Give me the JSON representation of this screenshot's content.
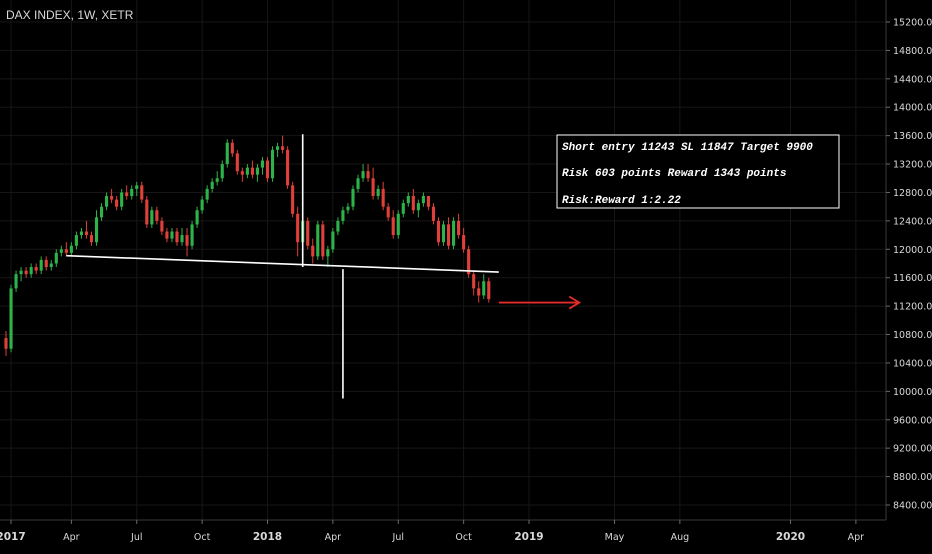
{
  "colors": {
    "background": "#000000",
    "grid": "#161616",
    "text": "#d9d9d9",
    "up_candle": "#2db34a",
    "down_candle": "#e0403a",
    "neckline": "#ffffff",
    "target_arrow": "#e22b2b",
    "annotation_border": "#ffffff"
  },
  "header": {
    "symbol_title": "DAX INDEX, 1W, XETR"
  },
  "annotation": {
    "line1": "Short entry 11243 SL 11847 Target 9900",
    "line2": "Risk 603 points Reward 1343 points",
    "line3": "Risk:Reward 1:2.22"
  },
  "chart_data": {
    "type": "candlestick",
    "title": "DAX INDEX, 1W, XETR",
    "interval": "1W",
    "exchange": "XETR",
    "yaxis": {
      "range": [
        8200,
        15400
      ],
      "ticks": [
        8400,
        8800,
        9200,
        9600,
        10000,
        10400,
        10800,
        11200,
        11600,
        12000,
        12400,
        12800,
        13200,
        13600,
        14000,
        14400,
        14800,
        15200
      ],
      "tick_labels": [
        "8400.00",
        "8800.00",
        "9200.00",
        "9600.00",
        "10000.00",
        "10400.00",
        "10800.00",
        "11200.00",
        "11600.00",
        "12000.00",
        "12400.00",
        "12800.00",
        "13200.00",
        "13600.00",
        "14000.00",
        "14400.00",
        "14800.00",
        "15200.00"
      ]
    },
    "xaxis": {
      "start_week": 0,
      "end_week": 160,
      "ticks": [
        {
          "week": 1,
          "label": "2017"
        },
        {
          "week": 13,
          "label": "Apr"
        },
        {
          "week": 26,
          "label": "Jul"
        },
        {
          "week": 39,
          "label": "Oct"
        },
        {
          "week": 52,
          "label": "2018"
        },
        {
          "week": 65,
          "label": "Apr"
        },
        {
          "week": 78,
          "label": "Jul"
        },
        {
          "week": 91,
          "label": "Oct"
        },
        {
          "week": 104,
          "label": "2019"
        },
        {
          "week": 121,
          "label": "May"
        },
        {
          "week": 134,
          "label": "Aug"
        },
        {
          "week": 156,
          "label": "2020"
        },
        {
          "week": 169,
          "label": "Apr"
        }
      ]
    },
    "grid": true,
    "candles": [
      [
        10750,
        10850,
        10500,
        10600
      ],
      [
        10600,
        11500,
        10550,
        11450
      ],
      [
        11450,
        11700,
        11400,
        11650
      ],
      [
        11650,
        11750,
        11550,
        11700
      ],
      [
        11700,
        11750,
        11600,
        11650
      ],
      [
        11650,
        11800,
        11600,
        11750
      ],
      [
        11750,
        11800,
        11650,
        11700
      ],
      [
        11700,
        11900,
        11650,
        11850
      ],
      [
        11850,
        11900,
        11700,
        11750
      ],
      [
        11750,
        11850,
        11700,
        11800
      ],
      [
        11800,
        12000,
        11750,
        11950
      ],
      [
        11950,
        12050,
        11900,
        12000
      ],
      [
        12000,
        12100,
        11900,
        11950
      ],
      [
        11950,
        12100,
        11900,
        12050
      ],
      [
        12050,
        12250,
        12000,
        12200
      ],
      [
        12200,
        12300,
        12150,
        12250
      ],
      [
        12250,
        12400,
        12150,
        12200
      ],
      [
        12200,
        12250,
        12050,
        12100
      ],
      [
        12100,
        12550,
        12050,
        12450
      ],
      [
        12450,
        12650,
        12400,
        12600
      ],
      [
        12600,
        12800,
        12550,
        12750
      ],
      [
        12750,
        12850,
        12650,
        12700
      ],
      [
        12700,
        12750,
        12550,
        12600
      ],
      [
        12600,
        12850,
        12550,
        12800
      ],
      [
        12800,
        12900,
        12700,
        12750
      ],
      [
        12750,
        12900,
        12700,
        12850
      ],
      [
        12850,
        12950,
        12750,
        12900
      ],
      [
        12900,
        12950,
        12650,
        12700
      ],
      [
        12700,
        12750,
        12300,
        12350
      ],
      [
        12350,
        12600,
        12300,
        12550
      ],
      [
        12550,
        12600,
        12350,
        12400
      ],
      [
        12400,
        12450,
        12200,
        12250
      ],
      [
        12250,
        12300,
        12100,
        12150
      ],
      [
        12150,
        12300,
        12100,
        12250
      ],
      [
        12250,
        12300,
        12050,
        12100
      ],
      [
        12100,
        12300,
        12050,
        12200
      ],
      [
        12200,
        12300,
        11900,
        12050
      ],
      [
        12050,
        12400,
        12000,
        12350
      ],
      [
        12350,
        12600,
        12300,
        12550
      ],
      [
        12550,
        12750,
        12500,
        12700
      ],
      [
        12700,
        12900,
        12650,
        12850
      ],
      [
        12850,
        13000,
        12800,
        12950
      ],
      [
        12950,
        13100,
        12900,
        13000
      ],
      [
        13000,
        13250,
        12950,
        13200
      ],
      [
        13200,
        13550,
        13150,
        13500
      ],
      [
        13500,
        13550,
        13300,
        13350
      ],
      [
        13350,
        13400,
        13050,
        13100
      ],
      [
        13100,
        13150,
        12950,
        13050
      ],
      [
        13050,
        13200,
        13000,
        13150
      ],
      [
        13150,
        13250,
        13000,
        13050
      ],
      [
        13050,
        13200,
        12950,
        13150
      ],
      [
        13150,
        13300,
        13050,
        13250
      ],
      [
        13250,
        13300,
        12950,
        13000
      ],
      [
        13000,
        13450,
        12950,
        13400
      ],
      [
        13400,
        13500,
        13300,
        13450
      ],
      [
        13450,
        13600,
        13350,
        13400
      ],
      [
        13400,
        13450,
        12850,
        12900
      ],
      [
        12900,
        12950,
        12450,
        12500
      ],
      [
        12500,
        12600,
        11900,
        12100
      ],
      [
        12100,
        12450,
        12000,
        12400
      ],
      [
        12400,
        12450,
        12000,
        12050
      ],
      [
        12050,
        12150,
        11800,
        11900
      ],
      [
        11900,
        12400,
        11850,
        12350
      ],
      [
        12350,
        12400,
        11850,
        11900
      ],
      [
        11900,
        12050,
        11750,
        12000
      ],
      [
        12000,
        12300,
        11950,
        12250
      ],
      [
        12250,
        12450,
        12200,
        12400
      ],
      [
        12400,
        12600,
        12350,
        12550
      ],
      [
        12550,
        12650,
        12500,
        12600
      ],
      [
        12600,
        12900,
        12550,
        12850
      ],
      [
        12850,
        13050,
        12800,
        13000
      ],
      [
        13000,
        13200,
        12950,
        13100
      ],
      [
        13100,
        13200,
        12950,
        13000
      ],
      [
        13000,
        13150,
        12700,
        12750
      ],
      [
        12750,
        12900,
        12700,
        12850
      ],
      [
        12850,
        12950,
        12550,
        12600
      ],
      [
        12600,
        12650,
        12400,
        12450
      ],
      [
        12450,
        12550,
        12150,
        12200
      ],
      [
        12200,
        12550,
        12150,
        12500
      ],
      [
        12500,
        12700,
        12450,
        12650
      ],
      [
        12650,
        12800,
        12600,
        12750
      ],
      [
        12750,
        12850,
        12500,
        12550
      ],
      [
        12550,
        12700,
        12450,
        12650
      ],
      [
        12650,
        12800,
        12600,
        12750
      ],
      [
        12750,
        12750,
        12550,
        12600
      ],
      [
        12600,
        12650,
        12350,
        12400
      ],
      [
        12400,
        12450,
        12050,
        12100
      ],
      [
        12100,
        12400,
        12050,
        12350
      ],
      [
        12350,
        12450,
        12000,
        12050
      ],
      [
        12050,
        12450,
        12000,
        12400
      ],
      [
        12400,
        12500,
        12150,
        12200
      ],
      [
        12200,
        12300,
        11950,
        12000
      ],
      [
        12000,
        12050,
        11600,
        11650
      ],
      [
        11650,
        11700,
        11350,
        11450
      ],
      [
        11450,
        11550,
        11250,
        11350
      ],
      [
        11350,
        11650,
        11300,
        11550
      ],
      [
        11550,
        11600,
        11250,
        11300
      ]
    ],
    "x_start_week": 0,
    "neckline": {
      "points": [
        [
          12,
          11910
        ],
        [
          98,
          11680
        ]
      ]
    },
    "vertical_line_head": {
      "week": 59,
      "from": 11750,
      "to": 13620
    },
    "vertical_line_projection": {
      "week": 67,
      "from": 9900,
      "to": 11720
    },
    "target_arrow": {
      "from_week": 98,
      "to_week": 114,
      "y": 11250
    },
    "legend": "none"
  }
}
